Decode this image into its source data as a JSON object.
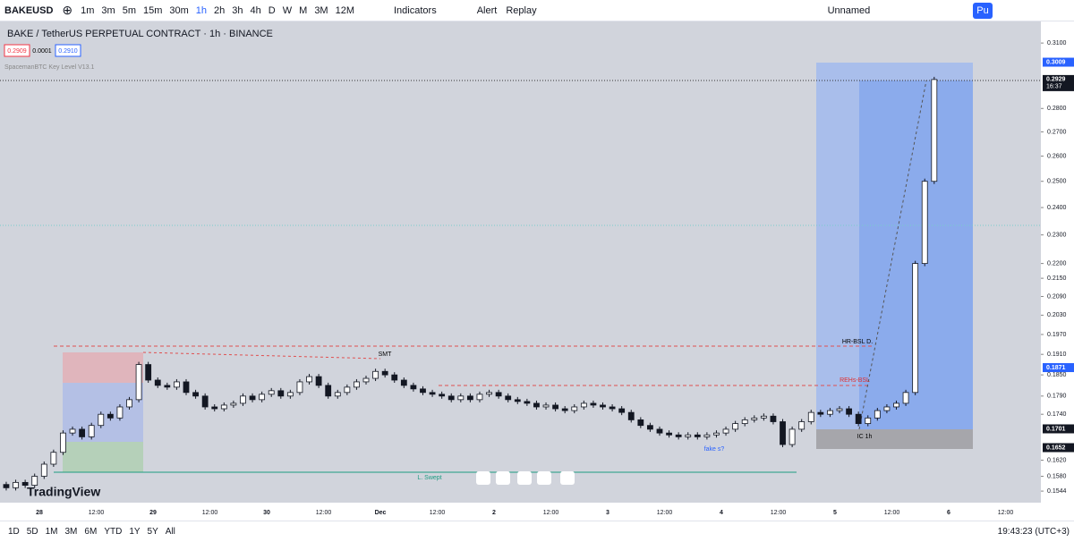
{
  "toolbar": {
    "symbol": "BAKEUSD",
    "intervals": [
      "1m",
      "3m",
      "5m",
      "15m",
      "30m",
      "1h",
      "2h",
      "3h",
      "4h",
      "D",
      "W",
      "M",
      "3M",
      "12M"
    ],
    "indicators": "Indicators",
    "alert": "Alert",
    "replay": "Replay",
    "layout": "Unnamed",
    "publish": "Pu"
  },
  "legend": {
    "title": "BAKE / TetherUS PERPETUAL CONTRACT · 1h · BINANCE",
    "bid": "0.2909",
    "spread": "0.0001",
    "ask": "0.2910",
    "indicator": "SpacemanBTC Key Level V13.1"
  },
  "chart_data": {
    "type": "candlestick",
    "watermark": "TradingView",
    "log_scale": true,
    "close": [
      0.156,
      0.1552,
      0.1565,
      0.1558,
      0.158,
      0.161,
      0.164,
      0.169,
      0.17,
      0.168,
      0.171,
      0.174,
      0.173,
      0.176,
      0.178,
      0.188,
      0.1835,
      0.182,
      0.1815,
      0.183,
      0.18,
      0.179,
      0.176,
      0.1755,
      0.1765,
      0.177,
      0.179,
      0.178,
      0.1795,
      0.1805,
      0.179,
      0.18,
      0.183,
      0.1845,
      0.182,
      0.179,
      0.18,
      0.1815,
      0.183,
      0.184,
      0.186,
      0.185,
      0.1835,
      0.182,
      0.181,
      0.18,
      0.1795,
      0.179,
      0.178,
      0.179,
      0.178,
      0.1795,
      0.18,
      0.179,
      0.178,
      0.1775,
      0.177,
      0.176,
      0.1765,
      0.1755,
      0.175,
      0.176,
      0.177,
      0.1765,
      0.176,
      0.1755,
      0.1745,
      0.1725,
      0.171,
      0.17,
      0.169,
      0.1685,
      0.168,
      0.1685,
      0.168,
      0.1685,
      0.169,
      0.17,
      0.1715,
      0.1725,
      0.173,
      0.1735,
      0.172,
      0.166,
      0.17,
      0.172,
      0.1745,
      0.174,
      0.175,
      0.1755,
      0.174,
      0.1715,
      0.173,
      0.175,
      0.176,
      0.177,
      0.18,
      0.22,
      0.25,
      0.2929
    ],
    "ylim": [
      0.1479,
      0.3188
    ],
    "yticks": [
      {
        "value": 0.31,
        "label": "0.3100"
      },
      {
        "value": 0.28,
        "label": "0.2800"
      },
      {
        "value": 0.27,
        "label": "0.2700"
      },
      {
        "value": 0.26,
        "label": "0.2600"
      },
      {
        "value": 0.25,
        "label": "0.2500"
      },
      {
        "value": 0.24,
        "label": "0.2400"
      },
      {
        "value": 0.23,
        "label": "0.2300"
      },
      {
        "value": 0.22,
        "label": "0.2200"
      },
      {
        "value": 0.215,
        "label": "0.2150"
      },
      {
        "value": 0.209,
        "label": "0.2090"
      },
      {
        "value": 0.203,
        "label": "0.2030"
      },
      {
        "value": 0.197,
        "label": "0.1970"
      },
      {
        "value": 0.191,
        "label": "0.1910"
      },
      {
        "value": 0.185,
        "label": "0.1850"
      },
      {
        "value": 0.179,
        "label": "0.1790"
      },
      {
        "value": 0.174,
        "label": "0.1740"
      },
      {
        "value": 0.162,
        "label": "0.1620"
      },
      {
        "value": 0.158,
        "label": "0.1580"
      },
      {
        "value": 0.1544,
        "label": "0.1544"
      }
    ],
    "price_badges": [
      {
        "value": 0.3009,
        "label": "0.3009",
        "color": "#2962ff"
      },
      {
        "value": 0.2929,
        "label": "0.2929",
        "time": "16:37",
        "color": "#131722"
      },
      {
        "value": 0.1871,
        "label": "0.1871",
        "color": "#2962ff"
      },
      {
        "value": 0.1701,
        "label": "0.1701",
        "color": "#131722"
      },
      {
        "value": 0.1652,
        "label": "0.1652",
        "color": "#131722"
      }
    ],
    "xtick_labels": [
      "28",
      "12:00",
      "29",
      "12:00",
      "30",
      "12:00",
      "Dec",
      "12:00",
      "2",
      "12:00",
      "3",
      "12:00",
      "4",
      "12:00",
      "5",
      "12:00",
      "6",
      "12:00"
    ],
    "annotations": [
      "SMT",
      "HR-BSL D.",
      "REHs-BSL",
      "L. Swept",
      "fake s?",
      "IC 1h"
    ]
  },
  "bottom_bar": {
    "ranges": [
      "1D",
      "5D",
      "1M",
      "3M",
      "6M",
      "YTD",
      "1Y",
      "5Y",
      "All"
    ],
    "time": "19:43:23 (UTC+3)"
  }
}
